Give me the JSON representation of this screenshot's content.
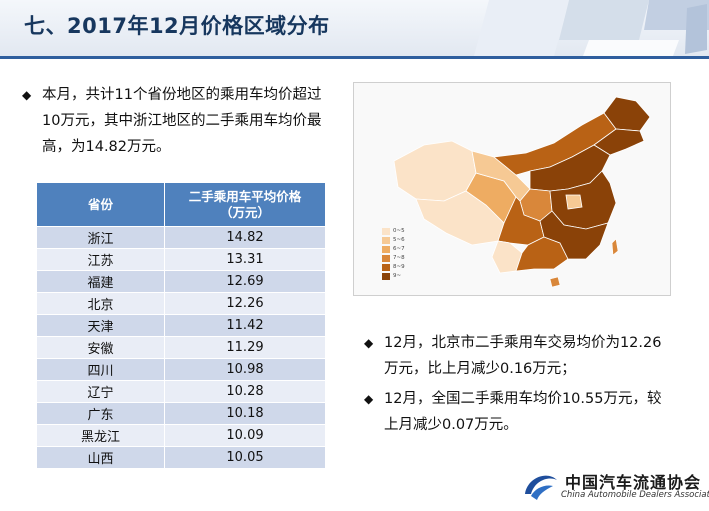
{
  "header": {
    "title": "七、2017年12月价格区域分布"
  },
  "bullets": {
    "b1": "本月，共计11个省份地区的乘用车均价超过10万元，其中浙江地区的二手乘用车均价最高，为14.82万元。",
    "b2": "12月，北京市二手乘用车交易均价为12.26万元，比上月减少0.16万元；",
    "b3": "12月，全国二手乘用车均价10.55万元，较上月减少0.07万元。"
  },
  "table": {
    "col_province": "省份",
    "col_price_line1": "二手乘用车平均价格",
    "col_price_line2": "（万元）",
    "rows": [
      {
        "province": "浙江",
        "price": "14.82"
      },
      {
        "province": "江苏",
        "price": "13.31"
      },
      {
        "province": "福建",
        "price": "12.69"
      },
      {
        "province": "北京",
        "price": "12.26"
      },
      {
        "province": "天津",
        "price": "11.42"
      },
      {
        "province": "安徽",
        "price": "11.29"
      },
      {
        "province": "四川",
        "price": "10.98"
      },
      {
        "province": "辽宁",
        "price": "10.28"
      },
      {
        "province": "广东",
        "price": "10.18"
      },
      {
        "province": "黑龙江",
        "price": "10.09"
      },
      {
        "province": "山西",
        "price": "10.05"
      }
    ]
  },
  "legend": [
    {
      "label": "0~5",
      "color": "#fbe3c8"
    },
    {
      "label": "5~6",
      "color": "#f6c994"
    },
    {
      "label": "6~7",
      "color": "#eeac62"
    },
    {
      "label": "7~8",
      "color": "#d9873a"
    },
    {
      "label": "8~9",
      "color": "#b96215"
    },
    {
      "label": "9~",
      "color": "#8a4208"
    }
  ],
  "logo": {
    "cn": "中国汽车流通协会",
    "en": "China Automobile Dealers Association",
    "mark": "CADA"
  }
}
